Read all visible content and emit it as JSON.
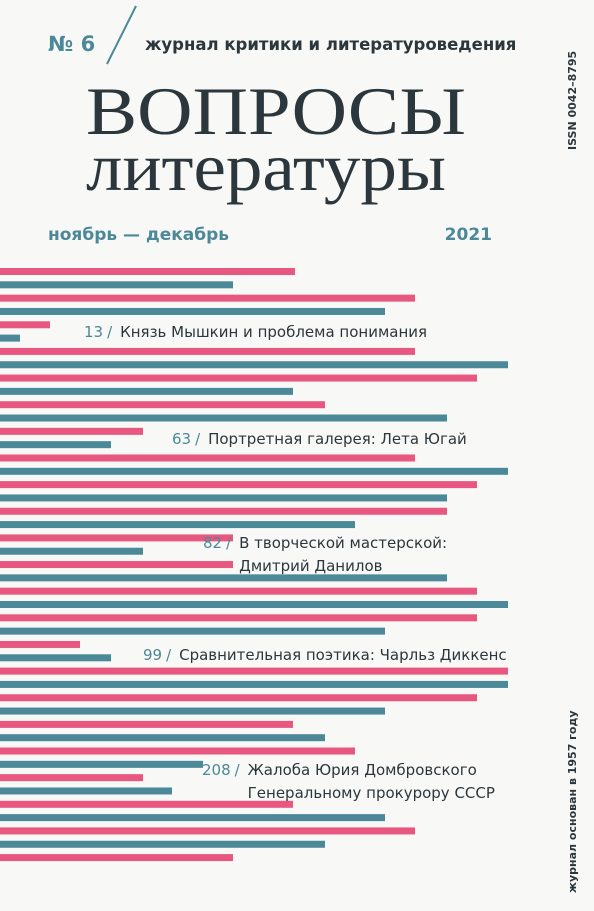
{
  "header": {
    "issue": "№ 6",
    "subtitle": "журнал критики и литературоведения",
    "title_line1": "ВОПРОСЫ",
    "title_line2": "литературы",
    "period": "ноябрь — декабрь",
    "year": "2021",
    "issn": "ISSN 0042–8795",
    "founded": "журнал основан в 1957 году"
  },
  "contents": {
    "separator": "/",
    "items": [
      {
        "page": 13,
        "lines": [
          "Князь Мышкин и проблема понимания"
        ]
      },
      {
        "page": 63,
        "lines": [
          "Портретная галерея: Лета Югай"
        ]
      },
      {
        "page": 82,
        "lines": [
          "В творческой мастерской:",
          "Дмитрий Данилов"
        ]
      },
      {
        "page": 99,
        "lines": [
          "Сравнительная поэтика: Чарльз Диккенс"
        ]
      },
      {
        "page": 208,
        "lines": [
          "Жалоба Юрия Домбровского",
          "Генеральному прокурору СССР"
        ]
      }
    ]
  }
}
